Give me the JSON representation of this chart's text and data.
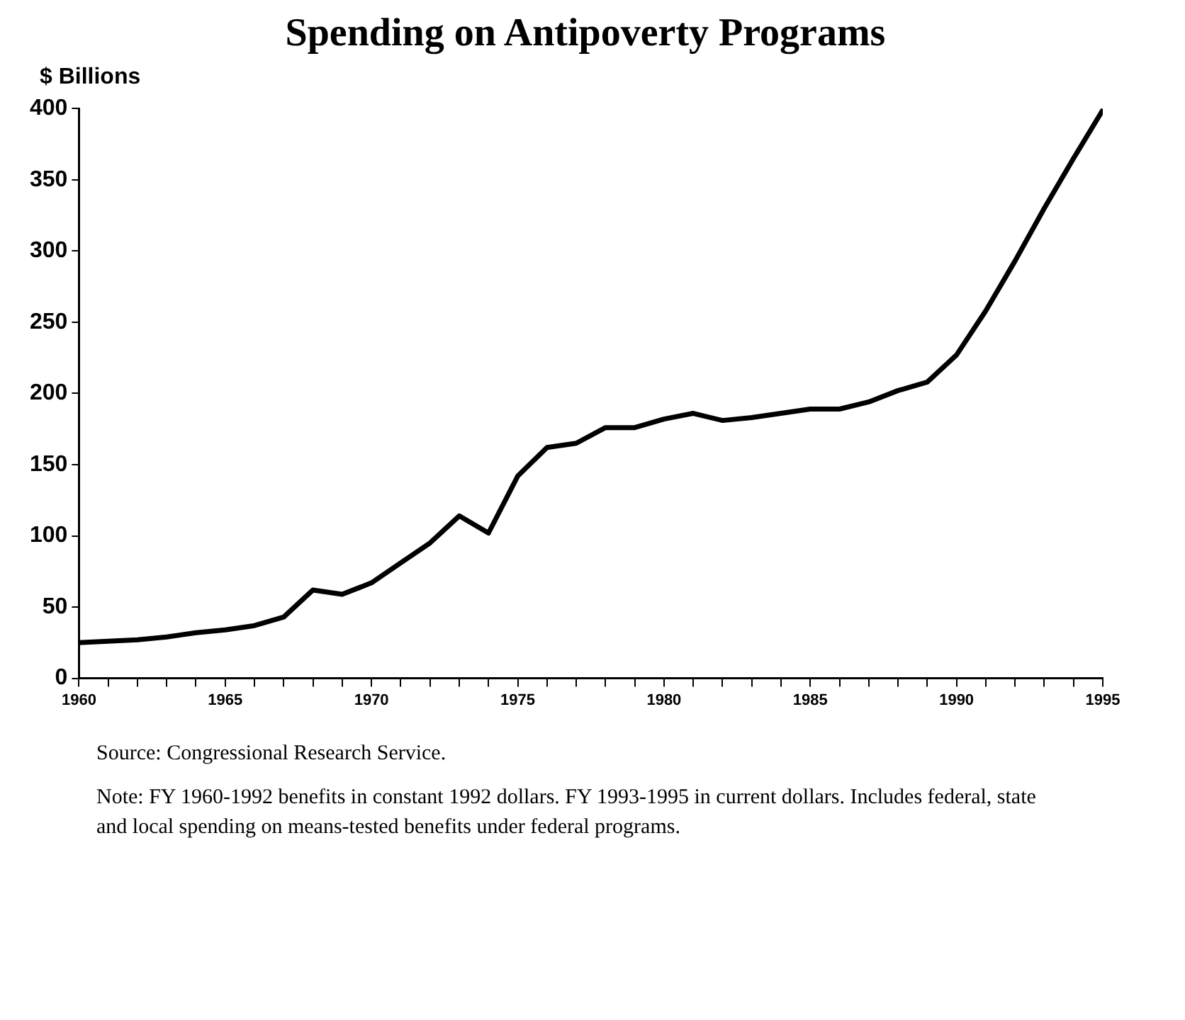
{
  "chart_data": {
    "type": "line",
    "title": "Spending on Antipoverty Programs",
    "ylabel": "$ Billions",
    "x": [
      1960,
      1961,
      1962,
      1963,
      1964,
      1965,
      1966,
      1967,
      1968,
      1969,
      1970,
      1971,
      1972,
      1973,
      1974,
      1975,
      1976,
      1977,
      1978,
      1979,
      1980,
      1981,
      1982,
      1983,
      1984,
      1985,
      1986,
      1987,
      1988,
      1989,
      1990,
      1991,
      1992,
      1993,
      1994,
      1995
    ],
    "series": [
      {
        "color": "#000000",
        "values": [
          25,
          26,
          27,
          29,
          32,
          34,
          37,
          43,
          62,
          59,
          67,
          81,
          95,
          114,
          102,
          142,
          162,
          165,
          176,
          176,
          182,
          186,
          181,
          183,
          186,
          189,
          189,
          194,
          202,
          208,
          227,
          258,
          293,
          330,
          365,
          399
        ]
      }
    ],
    "xlim": [
      1960,
      1995
    ],
    "xticks": [
      1960,
      {
        "value": 1961,
        "label": null
      },
      {
        "value": 1962,
        "label": null
      },
      {
        "value": 1963,
        "label": null
      },
      {
        "value": 1964,
        "label": null
      },
      1965,
      {
        "value": 1966,
        "label": null
      },
      {
        "value": 1967,
        "label": null
      },
      {
        "value": 1968,
        "label": null
      },
      {
        "value": 1969,
        "label": null
      },
      1970,
      {
        "value": 1971,
        "label": null
      },
      {
        "value": 1972,
        "label": null
      },
      {
        "value": 1973,
        "label": null
      },
      {
        "value": 1974,
        "label": null
      },
      1975,
      {
        "value": 1976,
        "label": null
      },
      {
        "value": 1977,
        "label": null
      },
      {
        "value": 1978,
        "label": null
      },
      {
        "value": 1979,
        "label": null
      },
      1980,
      {
        "value": 1981,
        "label": null
      },
      {
        "value": 1982,
        "label": null
      },
      {
        "value": 1983,
        "label": null
      },
      {
        "value": 1984,
        "label": null
      },
      1985,
      {
        "value": 1986,
        "label": null
      },
      {
        "value": 1987,
        "label": null
      },
      {
        "value": 1988,
        "label": null
      },
      {
        "value": 1989,
        "label": null
      },
      1990,
      {
        "value": 1991,
        "label": null
      },
      {
        "value": 1992,
        "label": null
      },
      {
        "value": 1993,
        "label": null
      },
      {
        "value": 1994,
        "label": null
      },
      1995
    ],
    "ylim": [
      0,
      400
    ],
    "yticks": [
      0,
      50,
      100,
      150,
      200,
      250,
      300,
      350,
      400
    ],
    "grid": false,
    "legend": false,
    "marker": "none",
    "line_style": "solid",
    "annotations": [
      "Source:  Congressional Research Service.",
      "Note:  FY 1960-1992 benefits in constant 1992 dollars.  FY 1993-1995 in current dollars. Includes federal, state and local spending on means-tested benefits under federal programs."
    ]
  }
}
